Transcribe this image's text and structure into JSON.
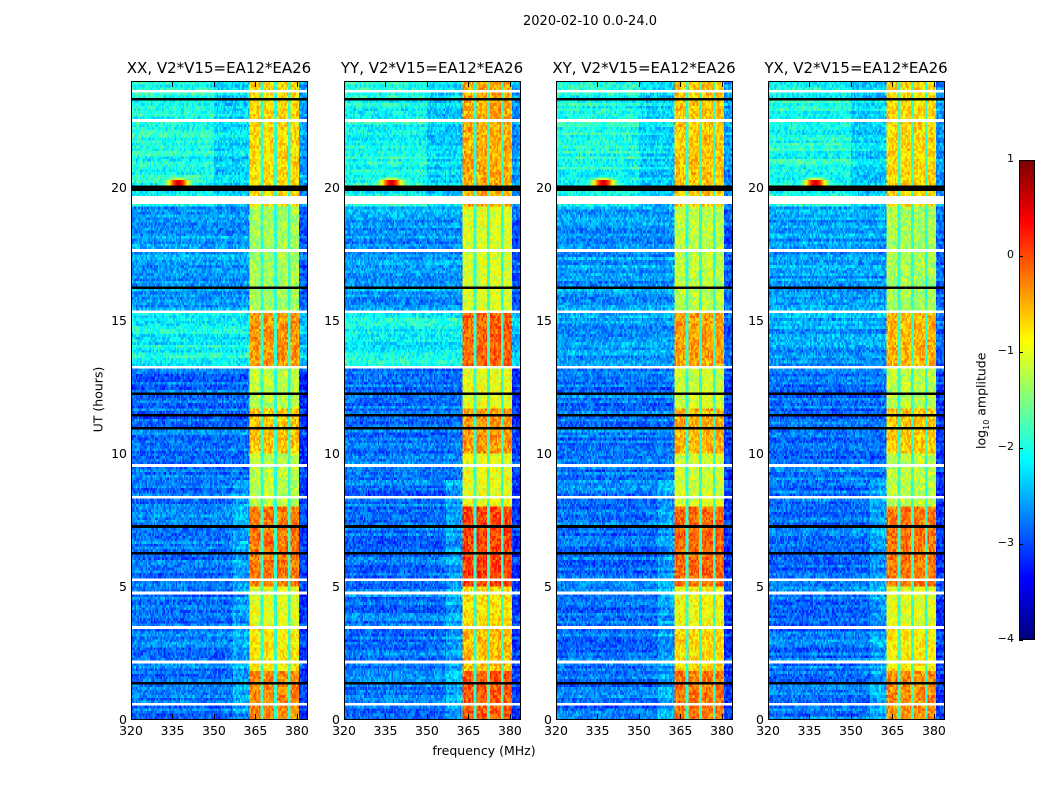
{
  "chart_data": {
    "type": "heatmap",
    "title": "2020-02-10 0.0-24.0",
    "xlabel": "frequency (MHz)",
    "ylabel": "UT (hours)",
    "xlim": [
      320,
      384
    ],
    "ylim": [
      0,
      24
    ],
    "xticks": [
      "320",
      "335",
      "350",
      "365",
      "380"
    ],
    "xtick_values": [
      320,
      335,
      350,
      365,
      380
    ],
    "yticks": [
      "0",
      "5",
      "10",
      "15",
      "20"
    ],
    "ytick_values": [
      0,
      5,
      10,
      15,
      20
    ],
    "panels": [
      {
        "title": "XX, V2*V15=EA12*EA26",
        "band_boost": 0.0,
        "cyan_boost": 0.5
      },
      {
        "title": "YY, V2*V15=EA12*EA26",
        "band_boost": 0.25,
        "cyan_boost": 0.5
      },
      {
        "title": "XY, V2*V15=EA12*EA26",
        "band_boost": 0.1,
        "cyan_boost": 0.0
      },
      {
        "title": "YX, V2*V15=EA12*EA26",
        "band_boost": 0.0,
        "cyan_boost": 0.0
      }
    ],
    "colorbar": {
      "label": "log10 amplitude",
      "label_main": "log",
      "label_sub": "10",
      "label_rest": " amplitude",
      "colormap": "jet",
      "range": [
        -4,
        1
      ],
      "ticks": [
        "1",
        "0",
        "−1",
        "−2",
        "−3",
        "−4"
      ],
      "tick_values": [
        1,
        0,
        -1,
        -2,
        -3,
        -4
      ]
    },
    "rfi_band_mhz": [
      363,
      381
    ],
    "subband_gaps_mhz": [
      367.5,
      372.5,
      377.5
    ],
    "band_levels": [
      {
        "from": 0,
        "to": 1.8,
        "level": -0.3
      },
      {
        "from": 1.8,
        "to": 3.5,
        "level": -0.8
      },
      {
        "from": 3.5,
        "to": 5,
        "level": -1.0
      },
      {
        "from": 5,
        "to": 8,
        "level": -0.2
      },
      {
        "from": 8,
        "to": 10,
        "level": -1.2
      },
      {
        "from": 10,
        "to": 11.7,
        "level": -0.6
      },
      {
        "from": 11.7,
        "to": 13.3,
        "level": -1.2
      },
      {
        "from": 13.3,
        "to": 15.3,
        "level": -0.5
      },
      {
        "from": 15.3,
        "to": 19.3,
        "level": -1.3
      },
      {
        "from": 19.3,
        "to": 24,
        "level": -0.7
      }
    ],
    "background_levels": [
      {
        "from": 0,
        "to": 13.2,
        "level": -2.8
      },
      {
        "from": 13.2,
        "to": 15.3,
        "level": -2.6
      },
      {
        "from": 15.3,
        "to": 19.3,
        "level": -2.6
      },
      {
        "from": 19.3,
        "to": 24,
        "level": -2.3
      }
    ],
    "rfi_spike": {
      "freq_mhz": 337,
      "hour": 20.2,
      "level": 0.9
    },
    "flagged_hours_white": [
      0.5,
      2.1,
      3.4,
      4.7,
      5.2,
      8.3,
      9.5,
      13.2,
      15.3,
      17.6,
      19.4,
      19.5,
      19.6,
      22.5,
      23.6
    ],
    "zero_hours_black": [
      1.3,
      6.2,
      7.2,
      10.9,
      11.4,
      12.2,
      16.2,
      19.9,
      20.0,
      23.3
    ]
  }
}
